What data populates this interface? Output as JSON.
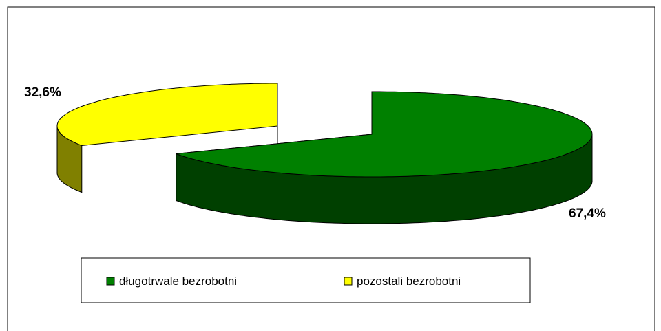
{
  "chart_data": {
    "type": "pie",
    "categories": [
      "długotrwale bezrobotni",
      "pozostali bezrobotni"
    ],
    "values": [
      67.4,
      32.6
    ],
    "value_labels": [
      "67,4%",
      "32,6%"
    ],
    "colors": [
      "#008000",
      "#ffff00"
    ],
    "legend": "bottom"
  }
}
